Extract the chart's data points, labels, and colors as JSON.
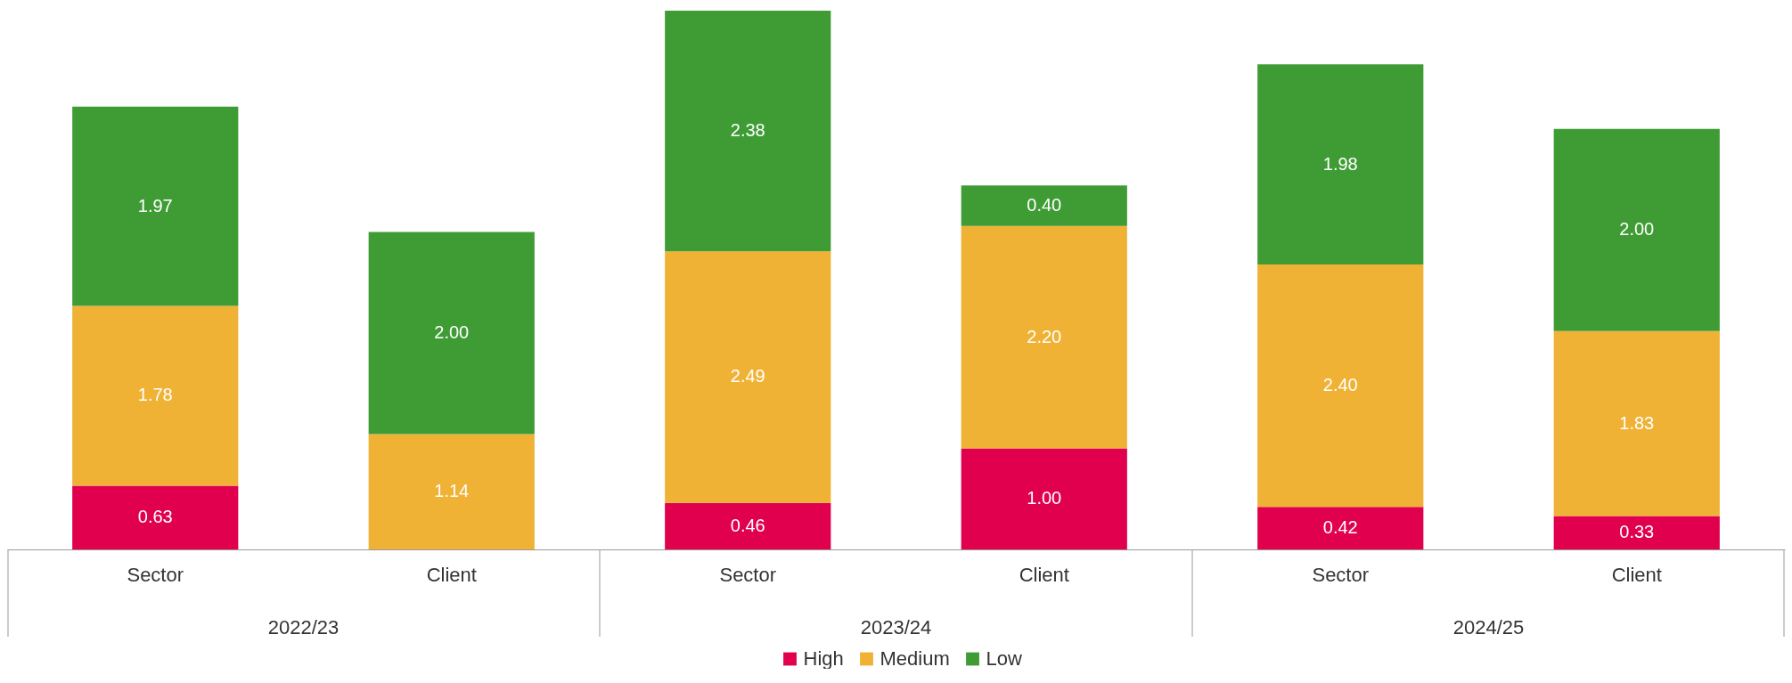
{
  "chart_data": {
    "type": "bar",
    "stacked": true,
    "legend": "bottom",
    "categories": [
      "Sector",
      "Client",
      "Sector",
      "Client",
      "Sector",
      "Client"
    ],
    "annotations": [
      "2022/23",
      "2023/24",
      "2024/25"
    ],
    "series": [
      {
        "name": "High",
        "color": "#e0004d",
        "values": [
          0.63,
          null,
          0.46,
          1.0,
          0.42,
          0.33
        ],
        "value_labels": [
          "0.63",
          null,
          "0.46",
          "1.00",
          "0.42",
          "0.33"
        ]
      },
      {
        "name": "Medium",
        "color": "#f0b235",
        "values": [
          1.78,
          1.14,
          2.49,
          2.2,
          2.4,
          1.83
        ],
        "value_labels": [
          "1.78",
          "1.14",
          "2.49",
          "2.20",
          "2.40",
          "1.83"
        ]
      },
      {
        "name": "Low",
        "color": "#3f9c35",
        "values": [
          1.97,
          2.0,
          2.38,
          0.4,
          1.98,
          2.0
        ],
        "value_labels": [
          "1.97",
          "2.00",
          "2.38",
          "0.40",
          "1.98",
          "2.00"
        ]
      }
    ]
  }
}
